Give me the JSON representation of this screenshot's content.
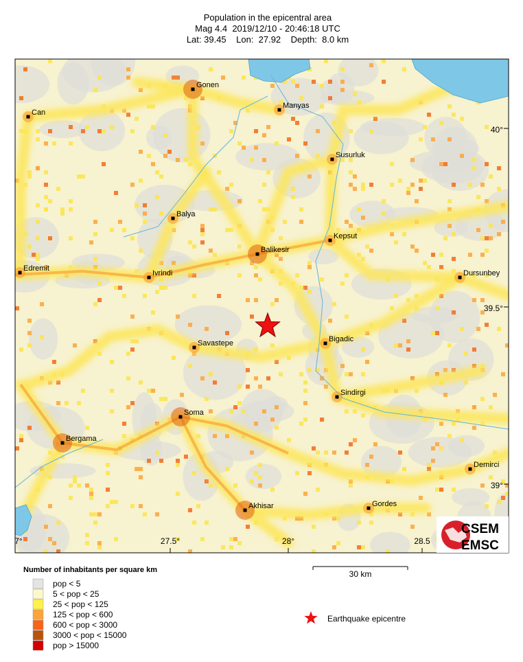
{
  "header": {
    "title": "Population in the epicentral area",
    "line2": "Mag 4.4  2019/12/10 - 20:46:18 UTC",
    "line3": "Lat: 39.45    Lon:  27.92    Depth:  8.0 km"
  },
  "map": {
    "cities": [
      "Gonen",
      "Can",
      "Manyas",
      "Susurluk",
      "Balya",
      "Kepsut",
      "Balikesir",
      "Edremit",
      "Ivrindi",
      "Dursunbey",
      "Savastepe",
      "Bigadic",
      "Sindirgi",
      "Soma",
      "Bergama",
      "Demirci",
      "Akhisar",
      "Gordes"
    ],
    "lon_labels": [
      "7°",
      "27.5°",
      "28°",
      "28.5"
    ],
    "lat_labels": [
      "40°",
      "39.5°",
      "39°"
    ]
  },
  "legend": {
    "title": "Number of inhabitants per square km",
    "items": [
      {
        "label": "pop < 5",
        "color": "#e4e4e0"
      },
      {
        "label": "5 < pop < 25",
        "color": "#fdf8c8"
      },
      {
        "label": "25 < pop < 125",
        "color": "#fff14a"
      },
      {
        "label": "125 < pop < 600",
        "color": "#fba43a"
      },
      {
        "label": "600 < pop < 3000",
        "color": "#f8641a"
      },
      {
        "label": "3000 < pop < 15000",
        "color": "#b8540e"
      },
      {
        "label": "pop > 15000",
        "color": "#d40000"
      }
    ]
  },
  "scale": {
    "label": "30 km"
  },
  "epicentre": {
    "label": "Earthquake epicentre"
  },
  "logo": {
    "top": "CSEM",
    "bottom": "EMSC"
  }
}
